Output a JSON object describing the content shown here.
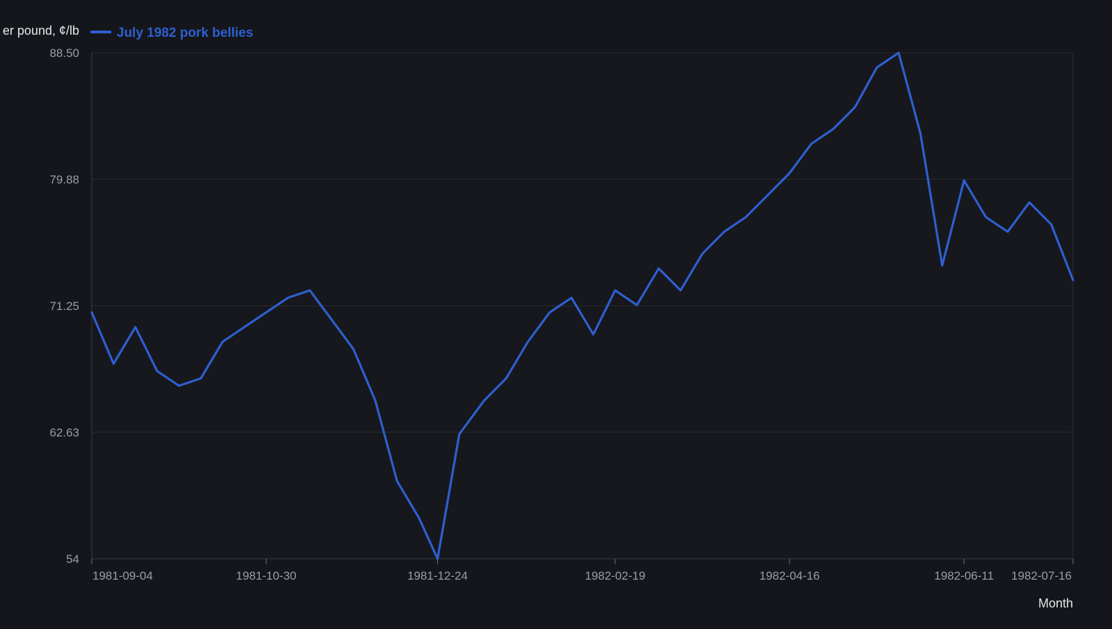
{
  "colors": {
    "background": "#14161b",
    "plot_background": "#16181d",
    "series": "#2f5fd0",
    "grid": "#2a2d33",
    "axis_text": "#9a9ea6",
    "label_text": "#e6e8eb"
  },
  "chart_data": {
    "type": "line",
    "ylabel": "er pound, ¢/lb",
    "xlabel": "Month",
    "legend_position": "top-left",
    "grid": true,
    "ylim": [
      54,
      88.5
    ],
    "xlim": [
      "1981-09-04",
      "1982-07-16"
    ],
    "y_ticks": [
      "54",
      "62.63",
      "71.25",
      "79.88",
      "88.50"
    ],
    "x_ticks": [
      "1981-09-04",
      "1981-10-30",
      "1981-12-24",
      "1982-02-19",
      "1982-04-16",
      "1982-06-11",
      "1982-07-16"
    ],
    "series": [
      {
        "name": "July 1982 pork bellies",
        "x": [
          "1981-09-04",
          "1981-09-11",
          "1981-09-18",
          "1981-09-25",
          "1981-10-02",
          "1981-10-09",
          "1981-10-16",
          "1981-10-23",
          "1981-10-30",
          "1981-11-06",
          "1981-11-13",
          "1981-11-20",
          "1981-11-27",
          "1981-12-04",
          "1981-12-11",
          "1981-12-18",
          "1981-12-24",
          "1981-12-31",
          "1982-01-08",
          "1982-01-15",
          "1982-01-22",
          "1982-01-29",
          "1982-02-05",
          "1982-02-12",
          "1982-02-19",
          "1982-02-26",
          "1982-03-05",
          "1982-03-12",
          "1982-03-19",
          "1982-03-26",
          "1982-04-02",
          "1982-04-09",
          "1982-04-16",
          "1982-04-23",
          "1982-04-30",
          "1982-05-07",
          "1982-05-14",
          "1982-05-21",
          "1982-05-28",
          "1982-06-04",
          "1982-06-11",
          "1982-06-18",
          "1982-06-25",
          "1982-07-02",
          "1982-07-09",
          "1982-07-16"
        ],
        "values": [
          70.8,
          67.3,
          69.8,
          66.8,
          65.8,
          66.3,
          68.8,
          69.8,
          70.8,
          71.8,
          72.3,
          70.3,
          68.3,
          64.8,
          59.3,
          56.8,
          54.0,
          62.5,
          64.8,
          66.3,
          68.8,
          70.8,
          71.8,
          69.3,
          72.3,
          71.3,
          73.8,
          72.3,
          74.8,
          76.3,
          77.3,
          78.8,
          80.3,
          82.3,
          83.3,
          84.8,
          87.5,
          88.5,
          83.0,
          74.0,
          79.8,
          77.3,
          76.3,
          78.3,
          76.8,
          73.0
        ]
      }
    ]
  }
}
